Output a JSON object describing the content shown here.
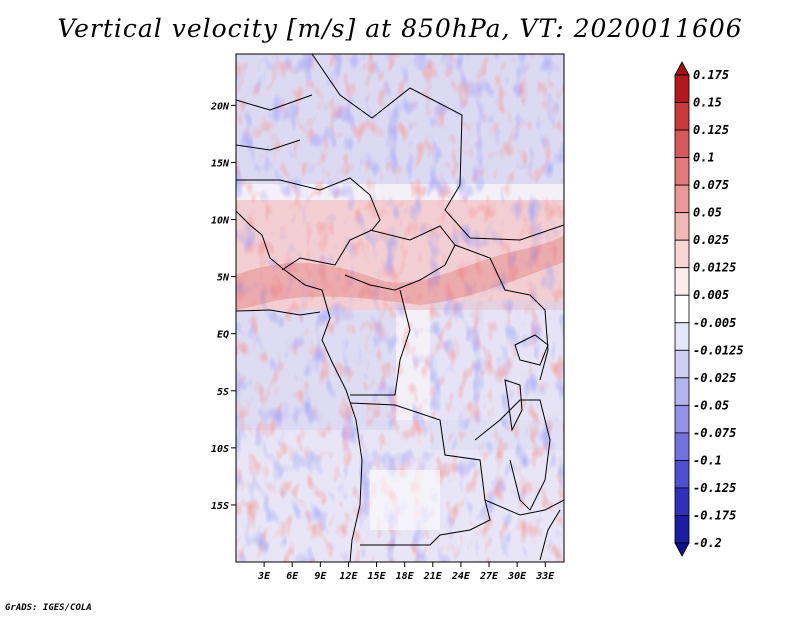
{
  "title": "Vertical velocity [m/s] at 850hPa, VT: 2020011606",
  "footer": "GrADS: IGES/COLA",
  "map": {
    "lon_range": [
      0,
      35
    ],
    "lat_range": [
      -20,
      24.5
    ],
    "lon_ticks": [
      "3E",
      "6E",
      "9E",
      "12E",
      "15E",
      "18E",
      "21E",
      "24E",
      "27E",
      "30E",
      "33E"
    ],
    "lon_tick_values": [
      3,
      6,
      9,
      12,
      15,
      18,
      21,
      24,
      27,
      30,
      33
    ],
    "lat_ticks": [
      "20N",
      "15N",
      "10N",
      "5N",
      "EQ",
      "5S",
      "10S",
      "15S"
    ],
    "lat_tick_values": [
      20,
      15,
      10,
      5,
      0,
      -5,
      -10,
      -15
    ]
  },
  "colorbar": {
    "labels": [
      "0.175",
      "0.15",
      "0.125",
      "0.1",
      "0.075",
      "0.05",
      "0.025",
      "0.0125",
      "0.005",
      "-0.005",
      "-0.0125",
      "-0.025",
      "-0.05",
      "-0.075",
      "-0.1",
      "-0.125",
      "-0.175",
      "-0.2"
    ],
    "colors": [
      "#a01418",
      "#b2191d",
      "#c93a3c",
      "#d8585a",
      "#e2797a",
      "#eb9998",
      "#f2b8b6",
      "#f8d6d4",
      "#fdeceb",
      "#ffffff",
      "#e6e6fb",
      "#cfcff6",
      "#b3b3f0",
      "#9292e8",
      "#7171df",
      "#4f4fd2",
      "#3030bd",
      "#1c1ca4",
      "#10108a"
    ]
  }
}
